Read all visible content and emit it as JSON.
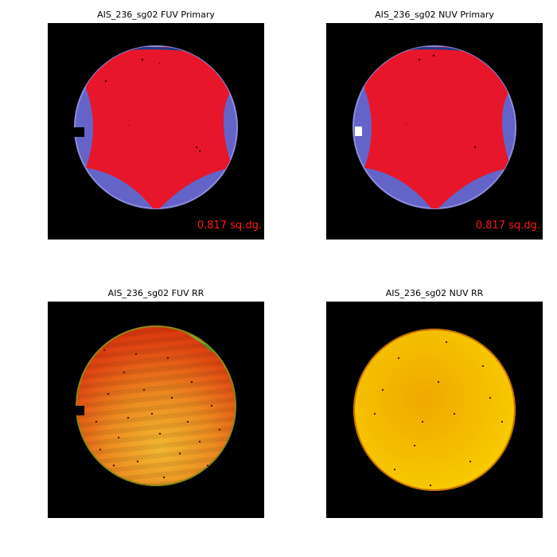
{
  "panels": [
    {
      "id": "fuv-primary",
      "title": "AIS_236_sg02 FUV Primary",
      "area_label": "0.817 sq.dg."
    },
    {
      "id": "nuv-primary",
      "title": "AIS_236_sg02 NUV Primary",
      "area_label": "0.817 sq.dg."
    },
    {
      "id": "fuv-rr",
      "title": "AIS_236_sg02 FUV RR"
    },
    {
      "id": "nuv-rr",
      "title": "AIS_236_sg02 NUV RR"
    }
  ],
  "colors": {
    "background": "#000000",
    "detector_fill": "#6464c8",
    "detector_rim": "#8c8cdc",
    "primary_region": "#e8162a",
    "area_label": "#ff1a1a",
    "fuv_rr_base": "#e03a10",
    "fuv_rr_corner": "#1fa040",
    "nuv_rr_base": "#f2b800"
  }
}
